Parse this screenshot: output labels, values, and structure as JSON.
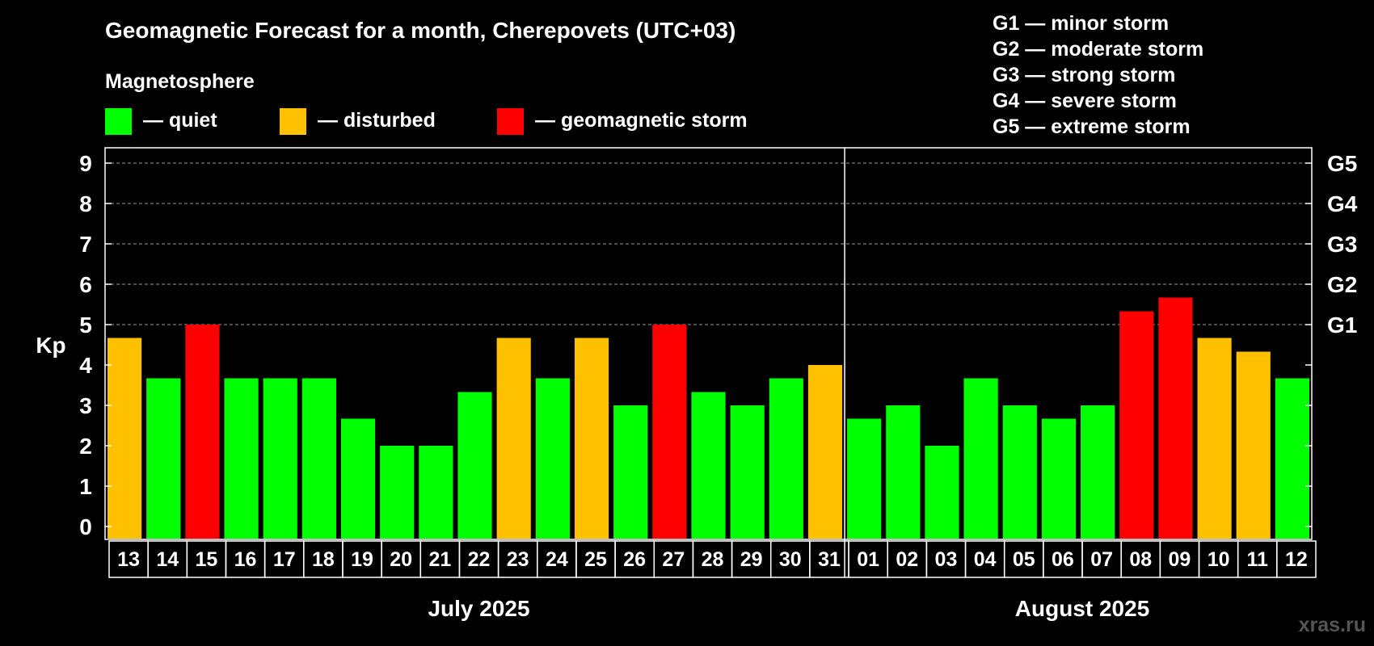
{
  "chart_data": {
    "type": "bar",
    "title": "Geomagnetic Forecast for a month, Cherepovets (UTC+03)",
    "ylabel": "Kp",
    "ylim": [
      0,
      9
    ],
    "yticks": [
      "0",
      "1",
      "2",
      "3",
      "4",
      "5",
      "6",
      "7",
      "8",
      "9"
    ],
    "right_axis_labels": [
      {
        "kp": 5,
        "label": "G1"
      },
      {
        "kp": 6,
        "label": "G2"
      },
      {
        "kp": 7,
        "label": "G3"
      },
      {
        "kp": 8,
        "label": "G4"
      },
      {
        "kp": 9,
        "label": "G5"
      }
    ],
    "legend_title": "Magnetosphere",
    "legend": [
      {
        "key": "quiet",
        "label": "— quiet",
        "color": "#00ff00"
      },
      {
        "key": "disturbed",
        "label": "— disturbed",
        "color": "#ffc000"
      },
      {
        "key": "storm",
        "label": "— geomagnetic storm",
        "color": "#ff0000"
      }
    ],
    "storm_scale": [
      "G1 — minor storm",
      "G2 — moderate storm",
      "G3 — strong storm",
      "G4 — severe storm",
      "G5 — extreme storm"
    ],
    "months": [
      {
        "label": "July 2025",
        "start": 0,
        "end": 18
      },
      {
        "label": "August 2025",
        "start": 19,
        "end": 30
      }
    ],
    "categories": [
      "13",
      "14",
      "15",
      "16",
      "17",
      "18",
      "19",
      "20",
      "21",
      "22",
      "23",
      "24",
      "25",
      "26",
      "27",
      "28",
      "29",
      "30",
      "31",
      "01",
      "02",
      "03",
      "04",
      "05",
      "06",
      "07",
      "08",
      "09",
      "10",
      "11",
      "12"
    ],
    "values": [
      4.67,
      3.67,
      5,
      3.67,
      3.67,
      3.67,
      2.67,
      2,
      2,
      3.33,
      4.67,
      3.67,
      4.67,
      3,
      5,
      3.33,
      3,
      3.67,
      4,
      2.67,
      3,
      2,
      3.67,
      3,
      2.67,
      3,
      5.33,
      5.67,
      4.67,
      4.33,
      3.67
    ],
    "levels": [
      "disturbed",
      "quiet",
      "storm",
      "quiet",
      "quiet",
      "quiet",
      "quiet",
      "quiet",
      "quiet",
      "quiet",
      "disturbed",
      "quiet",
      "disturbed",
      "quiet",
      "storm",
      "quiet",
      "quiet",
      "quiet",
      "disturbed",
      "quiet",
      "quiet",
      "quiet",
      "quiet",
      "quiet",
      "quiet",
      "quiet",
      "storm",
      "storm",
      "disturbed",
      "disturbed",
      "quiet"
    ],
    "grid": true
  },
  "watermark": "xras.ru"
}
